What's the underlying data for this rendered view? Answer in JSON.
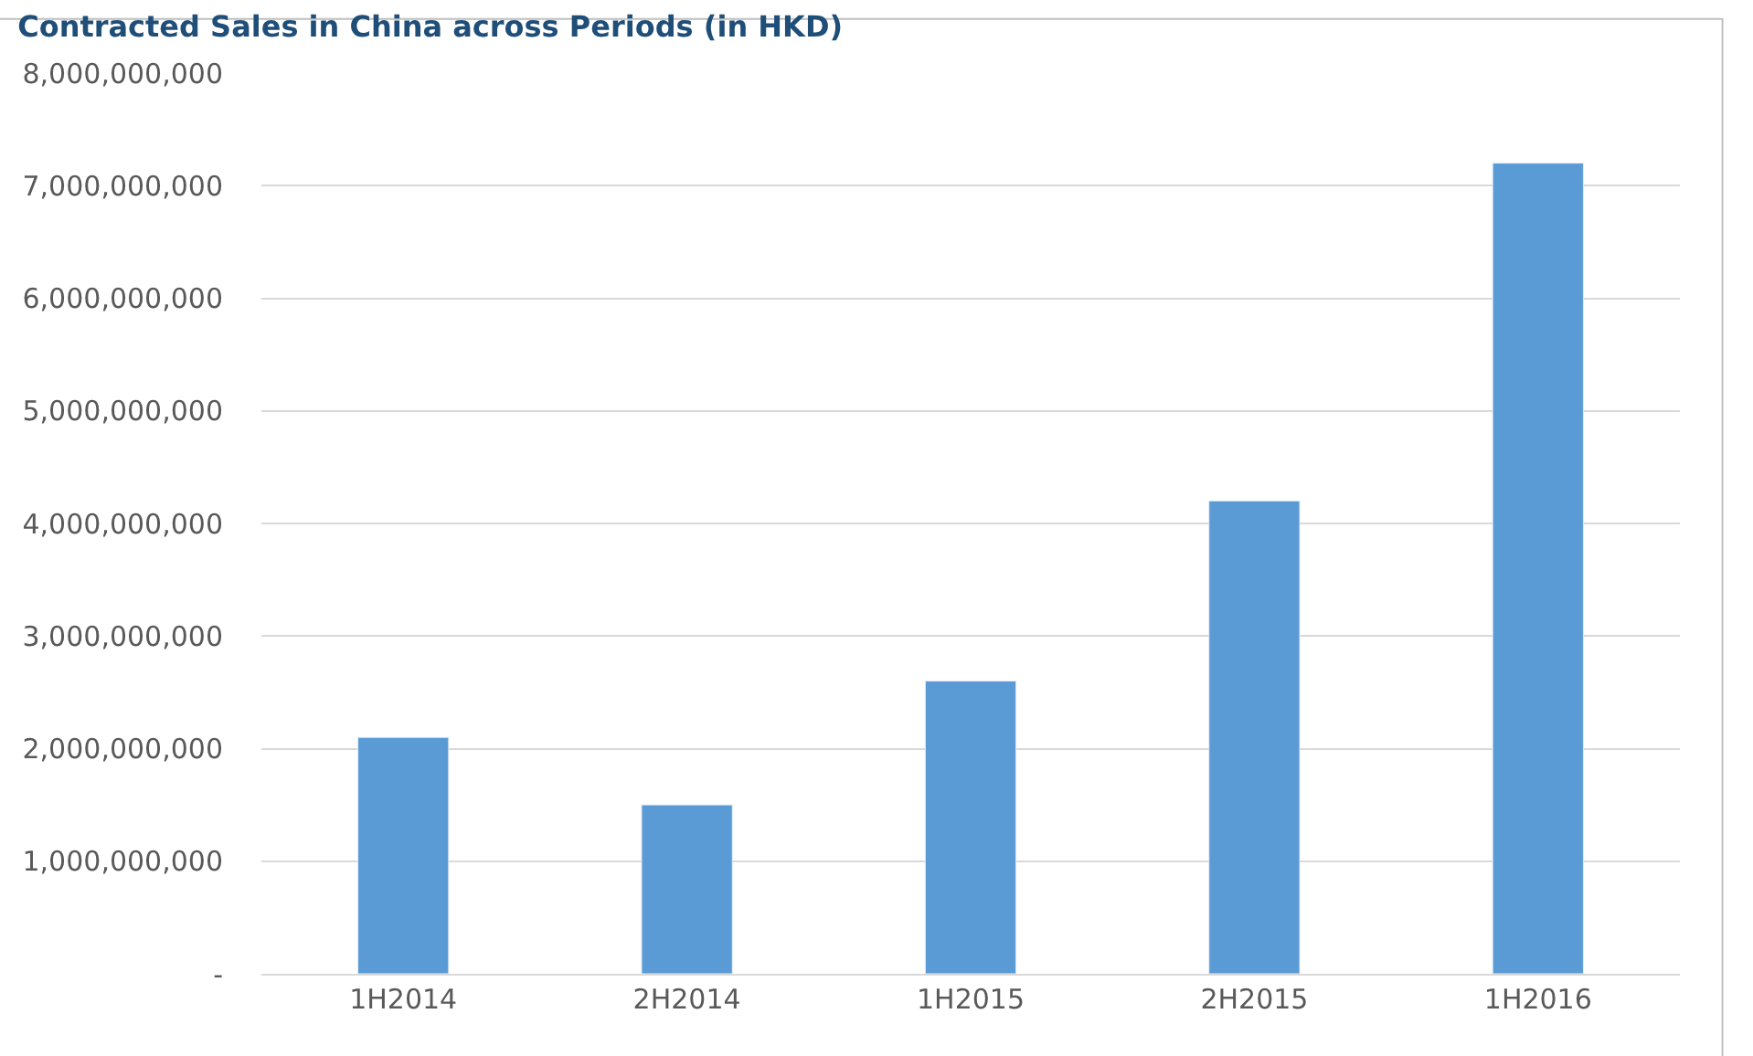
{
  "chart_data": {
    "type": "bar",
    "title": "Contracted Sales in China across Periods (in HKD)",
    "categories": [
      "1H2014",
      "2H2014",
      "1H2015",
      "2H2015",
      "1H2016"
    ],
    "values": [
      2100000000,
      1500000000,
      2600000000,
      4200000000,
      7200000000
    ],
    "color": "#5b9bd5",
    "ylim": [
      0,
      8000000000
    ],
    "yticks": [
      {
        "value": 0,
        "label": "-"
      },
      {
        "value": 1000000000,
        "label": "1,000,000,000"
      },
      {
        "value": 2000000000,
        "label": "2,000,000,000"
      },
      {
        "value": 3000000000,
        "label": "3,000,000,000"
      },
      {
        "value": 4000000000,
        "label": "4,000,000,000"
      },
      {
        "value": 5000000000,
        "label": "5,000,000,000"
      },
      {
        "value": 6000000000,
        "label": "6,000,000,000"
      },
      {
        "value": 7000000000,
        "label": "7,000,000,000"
      },
      {
        "value": 8000000000,
        "label": "8,000,000,000"
      }
    ],
    "grid": "y",
    "legend": false
  }
}
